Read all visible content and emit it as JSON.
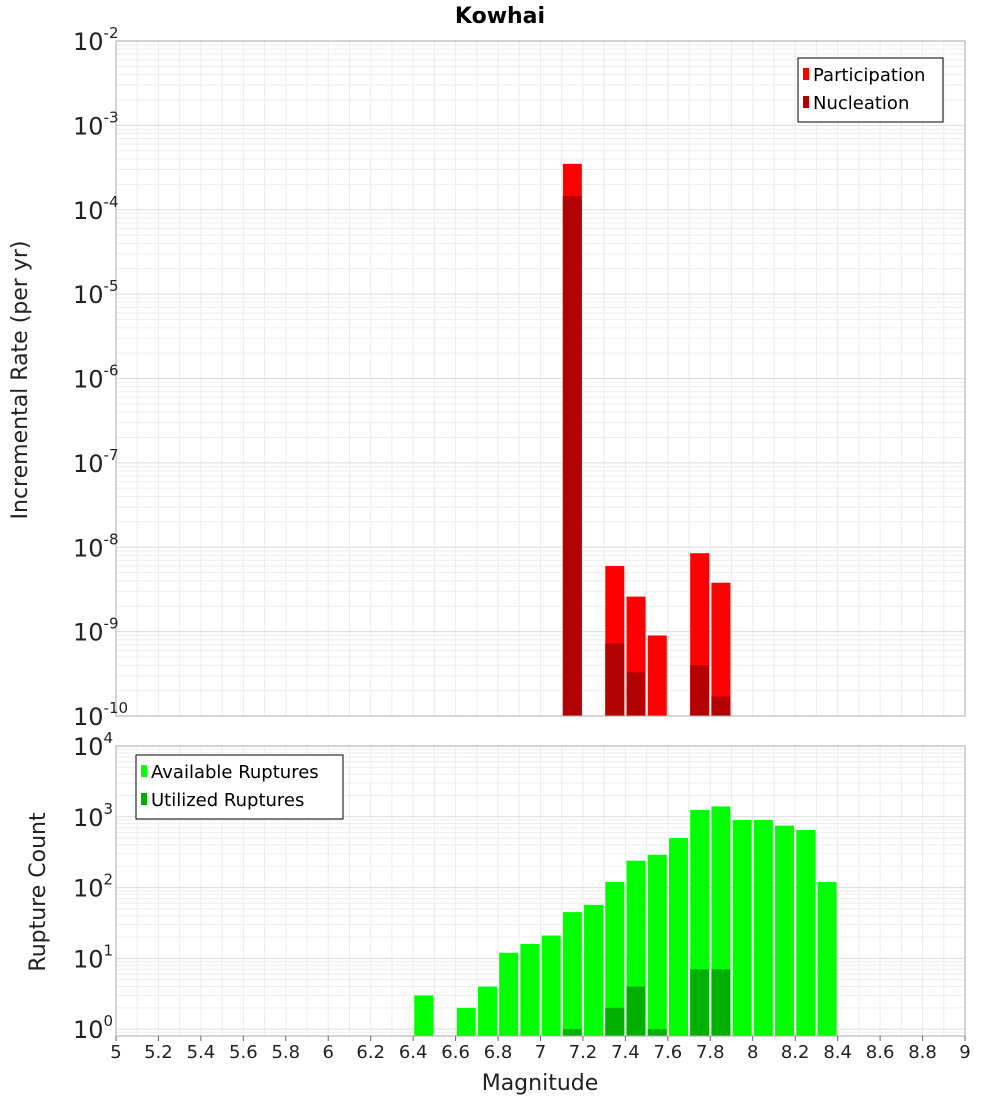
{
  "title": "Kowhai",
  "xlabel": "Magnitude",
  "chart_data": [
    {
      "type": "bar",
      "title": "Kowhai",
      "xlabel": "",
      "ylabel": "Incremental Rate (per yr)",
      "yscale": "log",
      "ylim": [
        1e-10,
        0.01
      ],
      "xlim": [
        5,
        9
      ],
      "grid": true,
      "legend": "top-right",
      "series": [
        {
          "name": "Participation",
          "color": "#ff0000",
          "x": [
            7.15,
            7.35,
            7.45,
            7.55,
            7.75,
            7.85
          ],
          "values": [
            0.00035,
            6e-09,
            2.6e-09,
            9e-10,
            8.5e-09,
            3.8e-09
          ]
        },
        {
          "name": "Nucleation",
          "color": "#b30000",
          "x": [
            7.15,
            7.35,
            7.45,
            7.75,
            7.85
          ],
          "values": [
            0.000145,
            7.2e-10,
            3.3e-10,
            4e-10,
            1.7e-10
          ]
        }
      ]
    },
    {
      "type": "bar",
      "xlabel": "Magnitude",
      "ylabel": "Rupture Count",
      "yscale": "log",
      "ylim": [
        0.8,
        10000
      ],
      "xlim": [
        5,
        9
      ],
      "grid": true,
      "legend": "top-left",
      "series": [
        {
          "name": "Available Ruptures",
          "color": "#00ff00",
          "x": [
            6.45,
            6.65,
            6.75,
            6.85,
            6.95,
            7.05,
            7.15,
            7.25,
            7.35,
            7.45,
            7.55,
            7.65,
            7.75,
            7.85,
            7.95,
            8.05,
            8.15,
            8.25,
            8.35
          ],
          "values": [
            3,
            2,
            4,
            12,
            16,
            21,
            45,
            57,
            120,
            240,
            290,
            500,
            1250,
            1400,
            900,
            900,
            750,
            650,
            120
          ]
        },
        {
          "name": "Utilized Ruptures",
          "color": "#00b000",
          "x": [
            7.15,
            7.35,
            7.45,
            7.55,
            7.75,
            7.85
          ],
          "values": [
            1,
            2,
            4,
            1,
            7,
            7
          ]
        }
      ]
    }
  ],
  "x_ticks": [
    "5",
    "5.2",
    "5.4",
    "5.6",
    "5.8",
    "6",
    "6.2",
    "6.4",
    "6.6",
    "6.8",
    "7",
    "7.2",
    "7.4",
    "7.6",
    "7.8",
    "8",
    "8.2",
    "8.4",
    "8.6",
    "8.8",
    "9"
  ]
}
